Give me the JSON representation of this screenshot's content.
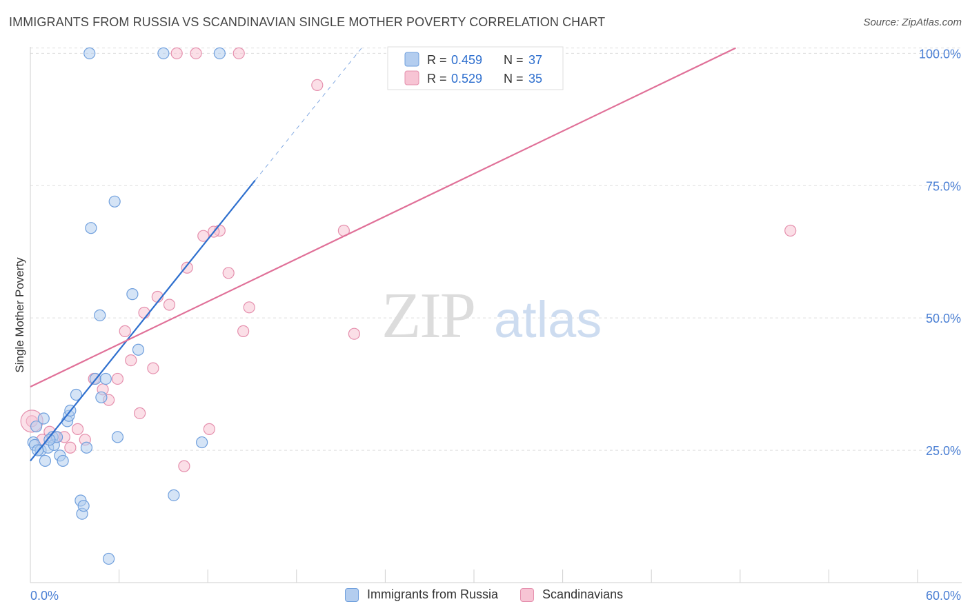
{
  "header": {
    "title": "IMMIGRANTS FROM RUSSIA VS SCANDINAVIAN SINGLE MOTHER POVERTY CORRELATION CHART",
    "source": "Source: ZipAtlas.com"
  },
  "colors": {
    "blue_fill": "#b3cdef",
    "blue_stroke": "#6f9fdd",
    "blue_line": "#2e6fce",
    "pink_fill": "#f7c4d4",
    "pink_stroke": "#e58fad",
    "pink_line": "#e07098",
    "tick_text": "#4a7fd4",
    "grid": "#dddddd"
  },
  "watermark": {
    "zip": "ZIP",
    "atlas": "atlas"
  },
  "legend": {
    "rows": [
      {
        "r_label": "R = ",
        "r_value": "0.459",
        "n_label": "N = ",
        "n_value": "37"
      },
      {
        "r_label": "R = ",
        "r_value": "0.529",
        "n_label": "N = ",
        "n_value": "35"
      }
    ]
  },
  "chart_data": {
    "type": "scatter",
    "title": "IMMIGRANTS FROM RUSSIA VS SCANDINAVIAN SINGLE MOTHER POVERTY CORRELATION CHART",
    "xlabel": "",
    "ylabel": "Single Mother Poverty",
    "xlim": [
      0,
      60
    ],
    "ylim": [
      0,
      102
    ],
    "x_tick_labels": [
      "0.0%",
      "60.0%"
    ],
    "y_ticks": [
      25,
      50,
      75,
      100
    ],
    "y_tick_labels": [
      "25.0%",
      "50.0%",
      "75.0%",
      "100.0%"
    ],
    "grid": true,
    "series": [
      {
        "name": "Immigrants from Russia",
        "r": 0.459,
        "n": 37,
        "points": [
          [
            0.2,
            26.5
          ],
          [
            0.3,
            26
          ],
          [
            0.4,
            29.5
          ],
          [
            0.7,
            25
          ],
          [
            0.9,
            31
          ],
          [
            1.0,
            23
          ],
          [
            1.2,
            25.5
          ],
          [
            1.5,
            27.5
          ],
          [
            1.6,
            26
          ],
          [
            1.8,
            27.5
          ],
          [
            2.0,
            24
          ],
          [
            2.2,
            23
          ],
          [
            2.5,
            30.5
          ],
          [
            2.6,
            31.5
          ],
          [
            2.7,
            32.5
          ],
          [
            3.1,
            35.5
          ],
          [
            3.4,
            15.5
          ],
          [
            3.5,
            13
          ],
          [
            3.6,
            14.5
          ],
          [
            3.8,
            25.5
          ],
          [
            4.0,
            100
          ],
          [
            4.1,
            67
          ],
          [
            4.4,
            38.5
          ],
          [
            4.7,
            50.5
          ],
          [
            4.8,
            35
          ],
          [
            5.1,
            38.5
          ],
          [
            5.3,
            4.5
          ],
          [
            5.7,
            72
          ],
          [
            5.9,
            27.5
          ],
          [
            6.9,
            54.5
          ],
          [
            7.3,
            44
          ],
          [
            9.0,
            100
          ],
          [
            9.7,
            16.5
          ],
          [
            11.6,
            26.5
          ],
          [
            12.8,
            100
          ],
          [
            0.5,
            25
          ],
          [
            1.3,
            27
          ]
        ]
      },
      {
        "name": "Scandinavians",
        "r": 0.529,
        "n": 35,
        "points": [
          [
            0.1,
            30.5
          ],
          [
            0.8,
            27
          ],
          [
            1.3,
            28.5
          ],
          [
            1.7,
            27.5
          ],
          [
            2.3,
            27.5
          ],
          [
            2.7,
            25.5
          ],
          [
            3.2,
            29
          ],
          [
            3.7,
            27
          ],
          [
            4.3,
            38.5
          ],
          [
            4.9,
            36.5
          ],
          [
            5.3,
            34.5
          ],
          [
            5.9,
            38.5
          ],
          [
            6.4,
            47.5
          ],
          [
            6.8,
            42
          ],
          [
            7.4,
            32
          ],
          [
            7.7,
            51
          ],
          [
            8.3,
            40.5
          ],
          [
            8.6,
            54
          ],
          [
            9.4,
            52.5
          ],
          [
            9.9,
            100
          ],
          [
            10.4,
            22
          ],
          [
            10.6,
            59.5
          ],
          [
            11.2,
            100
          ],
          [
            11.7,
            65.5
          ],
          [
            12.1,
            29
          ],
          [
            12.8,
            66.5
          ],
          [
            13.4,
            58.5
          ],
          [
            14.1,
            100
          ],
          [
            14.4,
            47.5
          ],
          [
            14.8,
            52
          ],
          [
            19.4,
            94
          ],
          [
            21.2,
            66.5
          ],
          [
            21.9,
            47
          ],
          [
            51.4,
            66.5
          ],
          [
            12.4,
            66.3
          ]
        ]
      }
    ],
    "trend_lines": [
      {
        "series": "Immigrants from Russia",
        "x1": 0,
        "y1": 23.0,
        "x2": 15.2,
        "y2": 76.0,
        "dashed_to_x": 22.4,
        "dashed_to_y": 101.0
      },
      {
        "series": "Scandinavians",
        "x1": 0,
        "y1": 37.0,
        "x2": 47.7,
        "y2": 101.0
      }
    ]
  },
  "bottom_legend": {
    "items": [
      {
        "label": "Immigrants from Russia"
      },
      {
        "label": "Scandinavians"
      }
    ]
  }
}
